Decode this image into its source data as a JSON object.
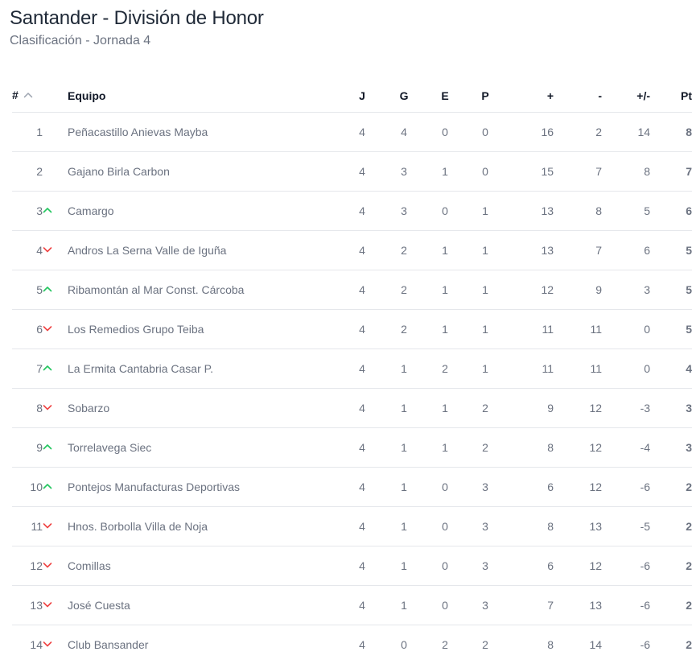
{
  "header": {
    "title": "Santander - División de Honor",
    "subtitle": "Clasificación - Jornada 4"
  },
  "colors": {
    "up": "#22c55e",
    "down": "#ef4444",
    "text_muted": "#6b7280",
    "divider": "#e5e7eb"
  },
  "table": {
    "columns": {
      "pos": "#",
      "team": "Equipo",
      "played": "J",
      "won": "G",
      "drawn": "E",
      "lost": "P",
      "goals_for": "+",
      "goals_against": "-",
      "diff": "+/-",
      "points": "Pt"
    },
    "sort_icon": "chevron-up-icon",
    "rows": [
      {
        "pos": "1",
        "trend": "none",
        "team": "Peñacastillo Anievas Mayba",
        "j": "4",
        "g": "4",
        "e": "0",
        "p": "0",
        "gf": "16",
        "ga": "2",
        "diff": "14",
        "pts": "8"
      },
      {
        "pos": "2",
        "trend": "none",
        "team": "Gajano Birla Carbon",
        "j": "4",
        "g": "3",
        "e": "1",
        "p": "0",
        "gf": "15",
        "ga": "7",
        "diff": "8",
        "pts": "7"
      },
      {
        "pos": "3",
        "trend": "up",
        "team": "Camargo",
        "j": "4",
        "g": "3",
        "e": "0",
        "p": "1",
        "gf": "13",
        "ga": "8",
        "diff": "5",
        "pts": "6"
      },
      {
        "pos": "4",
        "trend": "down",
        "team": "Andros La Serna Valle de Iguña",
        "j": "4",
        "g": "2",
        "e": "1",
        "p": "1",
        "gf": "13",
        "ga": "7",
        "diff": "6",
        "pts": "5"
      },
      {
        "pos": "5",
        "trend": "up",
        "team": "Ribamontán al Mar Const. Cárcoba",
        "j": "4",
        "g": "2",
        "e": "1",
        "p": "1",
        "gf": "12",
        "ga": "9",
        "diff": "3",
        "pts": "5"
      },
      {
        "pos": "6",
        "trend": "down",
        "team": "Los Remedios Grupo Teiba",
        "j": "4",
        "g": "2",
        "e": "1",
        "p": "1",
        "gf": "11",
        "ga": "11",
        "diff": "0",
        "pts": "5"
      },
      {
        "pos": "7",
        "trend": "up",
        "team": "La Ermita Cantabria Casar P.",
        "j": "4",
        "g": "1",
        "e": "2",
        "p": "1",
        "gf": "11",
        "ga": "11",
        "diff": "0",
        "pts": "4"
      },
      {
        "pos": "8",
        "trend": "down",
        "team": "Sobarzo",
        "j": "4",
        "g": "1",
        "e": "1",
        "p": "2",
        "gf": "9",
        "ga": "12",
        "diff": "-3",
        "pts": "3"
      },
      {
        "pos": "9",
        "trend": "up",
        "team": "Torrelavega Siec",
        "j": "4",
        "g": "1",
        "e": "1",
        "p": "2",
        "gf": "8",
        "ga": "12",
        "diff": "-4",
        "pts": "3"
      },
      {
        "pos": "10",
        "trend": "up",
        "team": "Pontejos Manufacturas Deportivas",
        "j": "4",
        "g": "1",
        "e": "0",
        "p": "3",
        "gf": "6",
        "ga": "12",
        "diff": "-6",
        "pts": "2"
      },
      {
        "pos": "11",
        "trend": "down",
        "team": "Hnos. Borbolla Villa de Noja",
        "j": "4",
        "g": "1",
        "e": "0",
        "p": "3",
        "gf": "8",
        "ga": "13",
        "diff": "-5",
        "pts": "2"
      },
      {
        "pos": "12",
        "trend": "down",
        "team": "Comillas",
        "j": "4",
        "g": "1",
        "e": "0",
        "p": "3",
        "gf": "6",
        "ga": "12",
        "diff": "-6",
        "pts": "2"
      },
      {
        "pos": "13",
        "trend": "down",
        "team": "José Cuesta",
        "j": "4",
        "g": "1",
        "e": "0",
        "p": "3",
        "gf": "7",
        "ga": "13",
        "diff": "-6",
        "pts": "2"
      },
      {
        "pos": "14",
        "trend": "down",
        "team": "Club Bansander",
        "j": "4",
        "g": "0",
        "e": "2",
        "p": "2",
        "gf": "8",
        "ga": "14",
        "diff": "-6",
        "pts": "2"
      }
    ]
  }
}
